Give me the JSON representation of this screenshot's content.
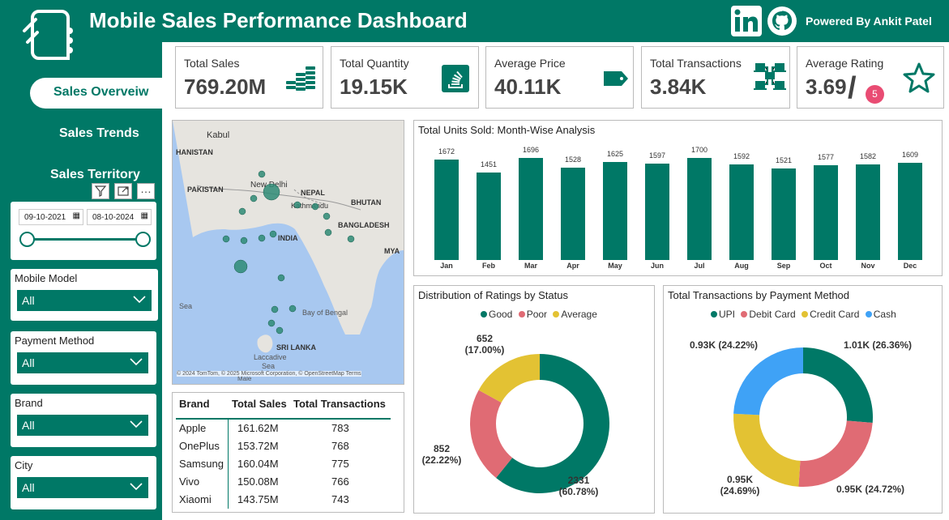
{
  "header": {
    "title": "Mobile Sales Performance Dashboard",
    "powered": "Powered By Ankit Patel"
  },
  "nav": {
    "items": [
      "Sales Overveiw",
      "Sales Trends",
      "Sales Territory"
    ]
  },
  "dates": {
    "start": "09-10-2021",
    "end": "08-10-2024"
  },
  "slicers": [
    {
      "label": "Mobile Model",
      "value": "All"
    },
    {
      "label": "Payment Method",
      "value": "All"
    },
    {
      "label": "Brand",
      "value": "All"
    },
    {
      "label": "City",
      "value": "All"
    }
  ],
  "kpis": [
    {
      "label": "Total Sales",
      "value": "769.20M",
      "icon": "coins-icon"
    },
    {
      "label": "Total Quantity",
      "value": "19.15K",
      "icon": "stack-icon"
    },
    {
      "label": "Average Price",
      "value": "40.11K",
      "icon": "tag-icon"
    },
    {
      "label": "Total Transactions",
      "value": "3.84K",
      "icon": "network-icon"
    },
    {
      "label": "Average Rating",
      "value": "3.69",
      "badge": "5",
      "icon": "star-icon"
    }
  ],
  "map": {
    "labels": [
      "Kabul",
      "HANISTAN",
      "PAKISTAN",
      "New Delhi",
      "NEPAL",
      "BHUTAN",
      "Kathmandu",
      "BANGLADESH",
      "INDIA",
      "MYA",
      "Bay of Bengal",
      "Sea",
      "SRI LANKA",
      "Laccadive",
      "Sea",
      "Male"
    ],
    "attribution": "© 2024 TomTom, © 2025 Microsoft Corporation, © OpenStreetMap  Terms"
  },
  "brand_table": {
    "headers": [
      "Brand",
      "Total Sales",
      "Total Transactions"
    ],
    "rows": [
      [
        "Apple",
        "161.62M",
        "783"
      ],
      [
        "OnePlus",
        "153.72M",
        "768"
      ],
      [
        "Samsung",
        "160.04M",
        "775"
      ],
      [
        "Vivo",
        "150.08M",
        "766"
      ],
      [
        "Xiaomi",
        "143.75M",
        "743"
      ]
    ]
  },
  "chart_data": [
    {
      "type": "bar",
      "title": "Total Units Sold: Month-Wise Analysis",
      "categories": [
        "Jan",
        "Feb",
        "Mar",
        "Apr",
        "May",
        "Jun",
        "Jul",
        "Aug",
        "Sep",
        "Oct",
        "Nov",
        "Dec"
      ],
      "values": [
        1672,
        1451,
        1696,
        1528,
        1625,
        1597,
        1700,
        1592,
        1521,
        1577,
        1582,
        1609
      ],
      "color": "#007866"
    },
    {
      "type": "pie",
      "title": "Distribution of Ratings by Status",
      "legend": [
        "Good",
        "Poor",
        "Average"
      ],
      "values": [
        2331,
        852,
        652
      ],
      "labels": [
        [
          "2331",
          "(60.78%)"
        ],
        [
          "852",
          "(22.22%)"
        ],
        [
          "652",
          "(17.00%)"
        ]
      ],
      "colors": [
        "#007866",
        "#E06B74",
        "#E3C233"
      ]
    },
    {
      "type": "pie",
      "title": "Total Transactions by Payment Method",
      "legend": [
        "UPI",
        "Debit Card",
        "Credit Card",
        "Cash"
      ],
      "values": [
        1.01,
        0.95,
        0.95,
        0.93
      ],
      "labels": [
        [
          "1.01K (26.36%)"
        ],
        [
          "0.95K (24.72%)"
        ],
        [
          "0.95K",
          "(24.69%)"
        ],
        [
          "0.93K (24.22%)"
        ]
      ],
      "colors": [
        "#007866",
        "#E06B74",
        "#E3C233",
        "#3FA2F6"
      ]
    }
  ]
}
